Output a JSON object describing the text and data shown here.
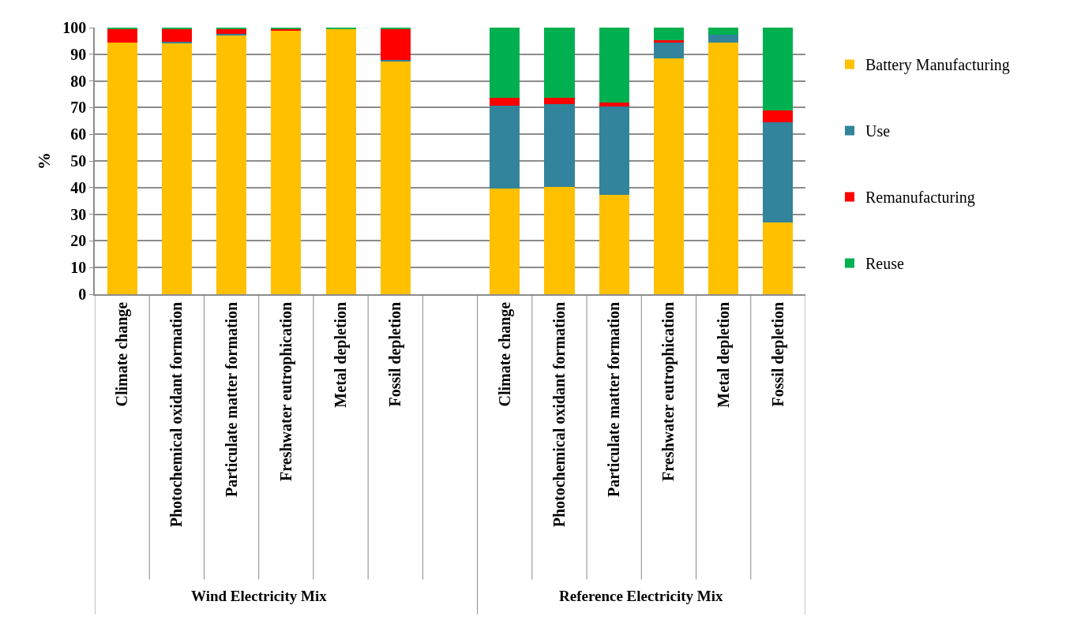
{
  "chart_data": {
    "type": "bar",
    "stacked": true,
    "ylabel": "%",
    "categories": [
      "Climate change",
      "Photochemical oxidant formation",
      "Particulate matter formation",
      "Freshwater eutrophication",
      "Metal depletion",
      "Fossil depletion",
      null,
      "Climate change",
      "Photochemical oxidant formation",
      "Particulate matter formation",
      "Freshwater eutrophication",
      "Metal depletion",
      "Fossil depletion"
    ],
    "series": [
      {
        "name": "Battery Manufacturing",
        "color": "#ffc000",
        "values": [
          94.4,
          94.3,
          97.2,
          99.1,
          99.6,
          87.4,
          null,
          39.7,
          40.1,
          37.2,
          88.5,
          94.3,
          26.9
        ]
      },
      {
        "name": "Use",
        "color": "#31849b",
        "values": [
          0,
          0.5,
          0.5,
          0,
          0,
          0.5,
          null,
          31.0,
          31.2,
          33.1,
          5.8,
          2.9,
          37.6
        ]
      },
      {
        "name": "Remanufacturing",
        "color": "#ff0000",
        "values": [
          5.2,
          4.8,
          1.9,
          0.4,
          0,
          11.8,
          null,
          3.1,
          2.5,
          1.6,
          1.0,
          0,
          4.5
        ]
      },
      {
        "name": "Reuse",
        "color": "#00b050",
        "values": [
          0.4,
          0.4,
          0.4,
          0.5,
          0.4,
          0.3,
          null,
          26.2,
          26.2,
          28.1,
          4.7,
          2.8,
          31.0
        ]
      }
    ],
    "ylim": [
      0,
      100
    ],
    "yticks": [
      0,
      10,
      20,
      30,
      40,
      50,
      60,
      70,
      80,
      90,
      100
    ],
    "grid": "y",
    "legend": "right",
    "annotations": [
      "Wind Electricity Mix",
      "Reference Electricity Mix"
    ]
  }
}
